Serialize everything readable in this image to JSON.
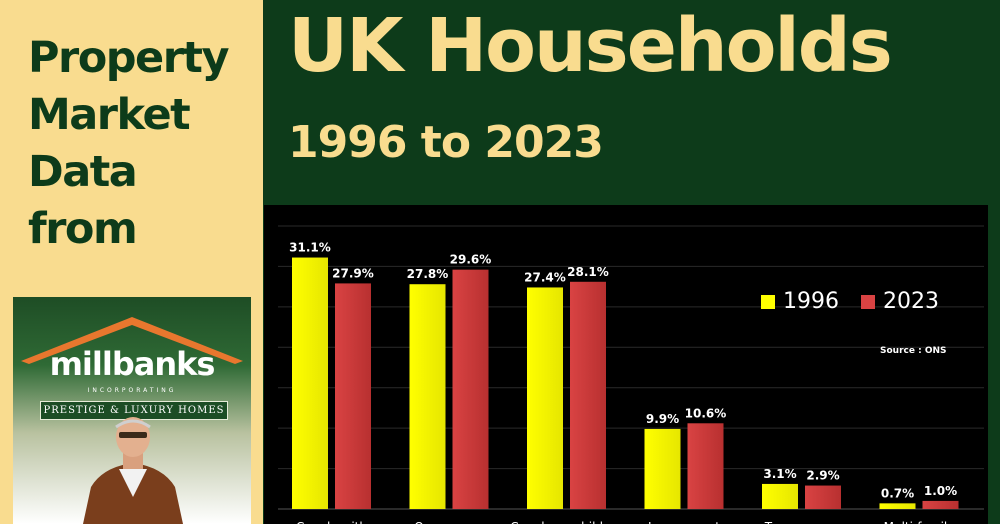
{
  "sidebar": {
    "title_lines": [
      "Property",
      "Market",
      "Data",
      "from"
    ],
    "logo_text": "millbanks",
    "logo_sub": "INCORPORATING",
    "logo_tagline": "PRESTIGE & LUXURY HOMES"
  },
  "header": {
    "title": "UK Households",
    "subtitle": "1996 to 2023"
  },
  "colors": {
    "background": "#0d3b1a",
    "accent": "#f9dc8f",
    "series_1996": "#ffff00",
    "series_2023": "#d94343"
  },
  "chart_data": {
    "type": "bar",
    "categories": [
      "Couple with",
      "One person",
      "Couple no children",
      "Lone parent",
      "Two or more",
      "Multi-family"
    ],
    "series": [
      {
        "name": "1996",
        "values": [
          31.1,
          27.8,
          27.4,
          9.9,
          3.1,
          0.7
        ],
        "labels": [
          "31.1%",
          "27.8%",
          "27.4%",
          "9.9%",
          "3.1%",
          "0.7%"
        ]
      },
      {
        "name": "2023",
        "values": [
          27.9,
          29.6,
          28.1,
          10.6,
          2.9,
          1.0
        ],
        "labels": [
          "27.9%",
          "29.6%",
          "28.1%",
          "10.6%",
          "2.9%",
          "1.0%"
        ]
      }
    ],
    "ylim": [
      0,
      35
    ],
    "grid": true,
    "legend": "top-right",
    "source": "Source : ONS"
  }
}
